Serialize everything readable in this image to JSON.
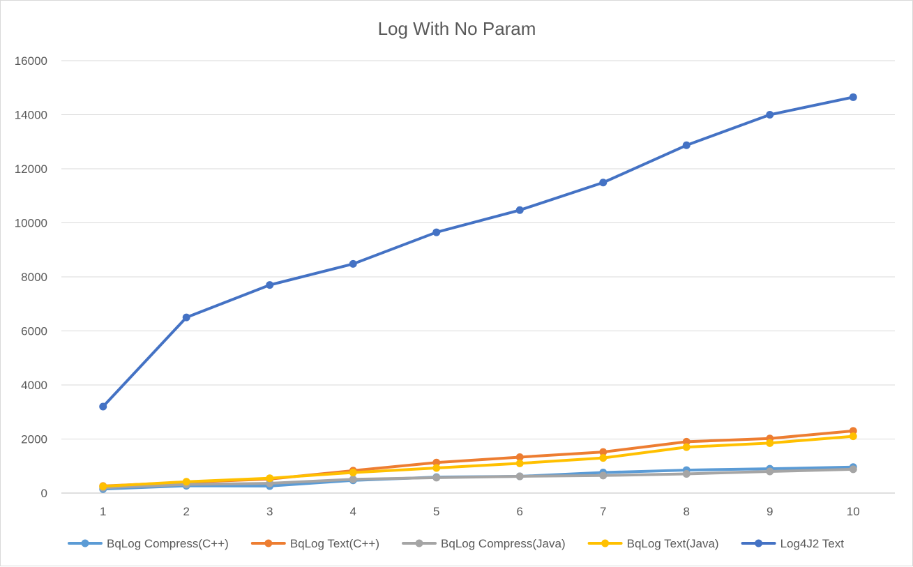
{
  "chart_data": {
    "type": "line",
    "title": "Log With No Param",
    "xlabel": "",
    "ylabel": "",
    "x": [
      1,
      2,
      3,
      4,
      5,
      6,
      7,
      8,
      9,
      10
    ],
    "x_tick_labels": [
      "1",
      "2",
      "3",
      "4",
      "5",
      "6",
      "7",
      "8",
      "9",
      "10"
    ],
    "ylim": [
      0,
      16000
    ],
    "y_ticks": [
      0,
      2000,
      4000,
      6000,
      8000,
      10000,
      12000,
      14000,
      16000
    ],
    "y_tick_labels": [
      "0",
      "2000",
      "4000",
      "6000",
      "8000",
      "10000",
      "12000",
      "14000",
      "16000"
    ],
    "grid": "horizontal",
    "legend_position": "bottom",
    "series": [
      {
        "name": "BqLog Compress(C++)",
        "color": "#5b9bd5",
        "values": [
          150,
          270,
          260,
          470,
          590,
          620,
          760,
          850,
          900,
          960
        ]
      },
      {
        "name": "BqLog Text(C++)",
        "color": "#ed7d31",
        "values": [
          260,
          400,
          520,
          830,
          1130,
          1330,
          1520,
          1900,
          2020,
          2300
        ]
      },
      {
        "name": "BqLog Compress(Java)",
        "color": "#a5a5a5",
        "values": [
          200,
          320,
          360,
          510,
          570,
          620,
          650,
          710,
          800,
          880
        ]
      },
      {
        "name": "BqLog Text(Java)",
        "color": "#ffc000",
        "values": [
          250,
          420,
          550,
          760,
          930,
          1100,
          1300,
          1700,
          1850,
          2100
        ]
      },
      {
        "name": "Log4J2 Text",
        "color": "#4472c4",
        "values": [
          3200,
          6500,
          7700,
          8480,
          9650,
          10470,
          11490,
          12870,
          14000,
          14650
        ]
      }
    ]
  }
}
